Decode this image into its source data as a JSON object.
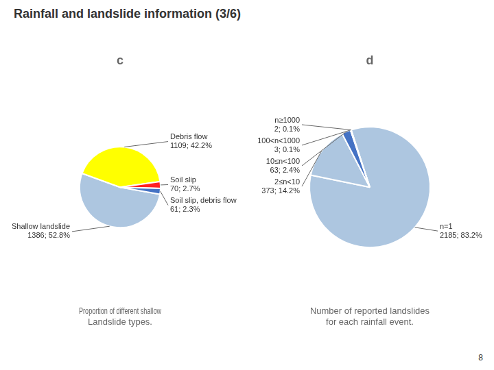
{
  "title": "Rainfall and landslide information (3/6)",
  "annotations": [
    "8"
  ],
  "chart_data": [
    {
      "type": "pie",
      "title": "c",
      "subtitle": [
        "Proportion of different shallow",
        "Landslide types."
      ],
      "categories": [
        "Shallow landslide",
        "Debris flow",
        "Soil slip",
        "Soil slip, debris flow"
      ],
      "values": [
        1386,
        1109,
        70,
        61
      ],
      "value_labels": [
        "1386; 52.8%",
        "1109; 42.2%",
        "70; 2.7%",
        "61; 2.3%"
      ],
      "colors": [
        "#adc6e0",
        "#ffff00",
        "#ff2222",
        "#4472c4"
      ],
      "data_labels": true
    },
    {
      "type": "pie",
      "title": "d",
      "subtitle": [
        "Number of reported landslides",
        "for each rainfall event."
      ],
      "categories": [
        "n=1",
        "2≤n<10",
        "10≤n<100",
        "100<n<1000",
        "n≥1000"
      ],
      "values": [
        2185,
        373,
        63,
        3,
        2
      ],
      "value_labels": [
        "2185; 83.2%",
        "373; 14.2%",
        "63; 2.4%",
        "3; 0.1%",
        "2; 0.1%"
      ],
      "colors": [
        "#adc6e0",
        "#adc6e0",
        "#4472c4",
        "#ffff00",
        "#7b3f00"
      ],
      "data_labels": true
    }
  ]
}
